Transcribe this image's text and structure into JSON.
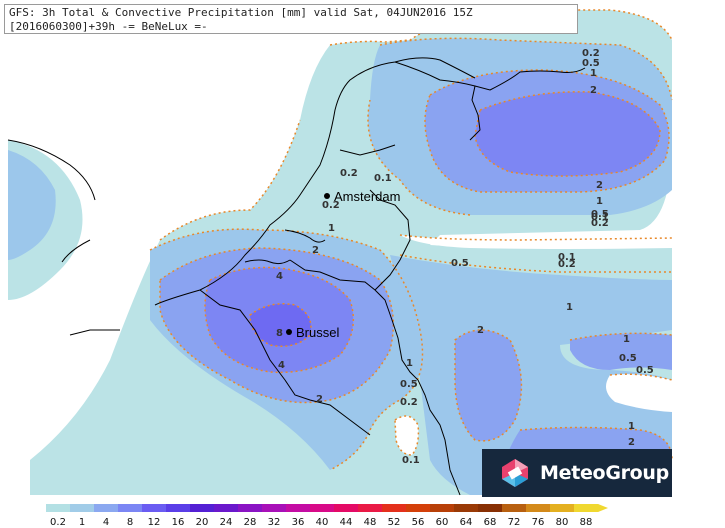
{
  "header": {
    "line1": "GFS: 3h Total & Convective Precipitation [mm] valid Sat, 04JUN2016 15Z",
    "line2": "[2016060300]+39h -= BeNeLux =-"
  },
  "cities": [
    {
      "name": "Amsterdam"
    },
    {
      "name": "Brussel"
    }
  ],
  "contour_labels": [
    "0.2",
    "0.5",
    "1",
    "2",
    "0.2",
    "0.1",
    "0.2",
    "1",
    "2",
    "4",
    "8",
    "4",
    "2",
    "0.5",
    "0.1",
    "0.2",
    "1",
    "0.5",
    "0.2",
    "0.1",
    "2",
    "1",
    "2",
    "1",
    "0.5",
    "0.2",
    "0.5",
    "1",
    "0.5",
    "0.1",
    "1",
    "2"
  ],
  "logo": {
    "text": "MeteoGroup",
    "icon": "meteogroup-logo-icon"
  },
  "legend": {
    "labels": [
      "0.2",
      "1",
      "4",
      "8",
      "12",
      "16",
      "20",
      "24",
      "28",
      "32",
      "36",
      "40",
      "44",
      "48",
      "52",
      "56",
      "60",
      "64",
      "68",
      "72",
      "76",
      "80",
      "88"
    ],
    "colors": [
      "#b3e0e4",
      "#a1cce8",
      "#8ba8f0",
      "#7b86f4",
      "#6a5cf2",
      "#5a3ee8",
      "#5420d4",
      "#6a18cc",
      "#8a14c4",
      "#a810b8",
      "#c40ca4",
      "#d80a88",
      "#e40a66",
      "#ea1a46",
      "#e4301c",
      "#d4400a",
      "#b84008",
      "#9a3a06",
      "#883004",
      "#b86010",
      "#d48a1a",
      "#e4b020",
      "#f0d830"
    ]
  },
  "colors": {
    "level_0_2": "#bbe3e6",
    "level_1": "#9cc7eb",
    "level_2": "#8aa3f1",
    "level_4": "#7d86f3",
    "level_8": "#6e6af2",
    "contour_line": "#e8882a",
    "coast_line": "#000000"
  }
}
